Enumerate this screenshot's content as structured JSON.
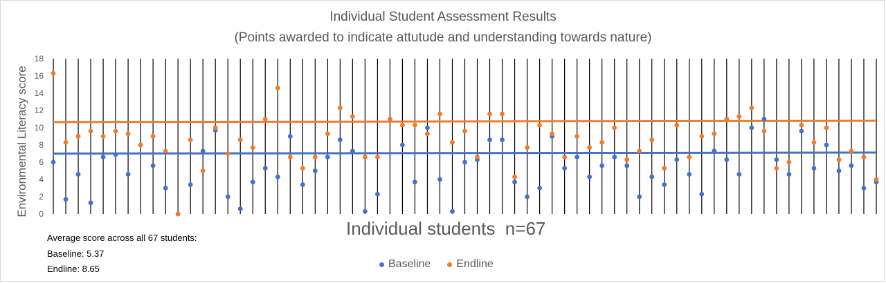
{
  "chart_data": {
    "type": "scatter",
    "title": "Individual Student Assessment Results",
    "subtitle": "(Points awarded to indicate attutude and understanding towards nature)",
    "xlabel": "Individual students  n=67",
    "ylabel": "Environmental Literacy score",
    "ylim": [
      0,
      18
    ],
    "yticks": [
      0,
      2,
      4,
      6,
      8,
      10,
      12,
      14,
      16,
      18
    ],
    "xlim": [
      1,
      67
    ],
    "grid": "vertical lines per student",
    "legend_position": "bottom",
    "series": [
      {
        "name": "Baseline",
        "color": "#4472c4",
        "values": [
          6,
          1.7,
          4.6,
          1.3,
          6.6,
          6.9,
          4.6,
          8,
          5.6,
          3,
          0,
          3.4,
          7.3,
          9.7,
          2,
          0.6,
          3.7,
          5.3,
          4.3,
          9,
          3.4,
          5,
          6.6,
          8.6,
          7.3,
          0.3,
          2.3,
          11,
          8,
          3.7,
          10,
          4,
          0.3,
          6,
          6.3,
          8.6,
          8.6,
          3.7,
          2,
          3,
          9,
          5.3,
          6.6,
          4.3,
          5.6,
          6.6,
          5.6,
          2,
          4.3,
          3.4,
          6.3,
          4.6,
          2.3,
          7.3,
          6.3,
          4.6,
          10,
          11,
          6.3,
          4.6,
          9.6,
          5.3,
          8,
          5,
          5.6,
          3,
          3.7
        ],
        "trend": [
          7,
          7.12
        ]
      },
      {
        "name": "Endline",
        "color": "#ed7d31",
        "values": [
          16.3,
          8.3,
          9,
          9.6,
          9,
          9.6,
          9.3,
          8,
          9,
          7.3,
          0,
          8.6,
          5,
          10,
          7,
          8.6,
          7.7,
          11,
          14.6,
          6.6,
          5.3,
          6.6,
          9.3,
          12.3,
          11.3,
          6.6,
          6.6,
          11,
          10.3,
          10.3,
          9.3,
          11.6,
          8.3,
          9.6,
          6.6,
          11.6,
          11.6,
          4.3,
          7.7,
          10.3,
          9.3,
          6.6,
          9,
          7.7,
          8.3,
          10,
          6.3,
          7.3,
          8.6,
          5.3,
          10.3,
          6.6,
          9,
          9.3,
          11,
          11.3,
          12.3,
          9.6,
          5.3,
          6,
          10.3,
          8.3,
          10,
          6.3,
          7.3,
          6.6,
          4
        ],
        "trend": [
          10.65,
          10.8
        ]
      }
    ]
  },
  "stats": {
    "heading": "Average score across all 67 students:",
    "baseline": "Baseline: 5.37",
    "endline": "Endline: 8.65"
  }
}
